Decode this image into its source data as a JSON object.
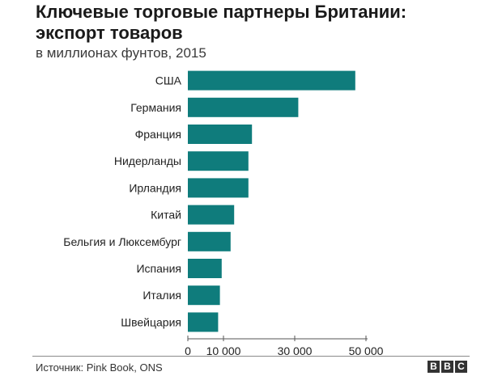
{
  "header": {
    "title_line1": "Ключевые торговые партнеры Британии:",
    "title_line2": "экспорт товаров",
    "subtitle": "в миллионах фунтов, 2015"
  },
  "footer": {
    "source": "Источник: Pink Book, ONS",
    "logo_letters": [
      "B",
      "B",
      "C"
    ]
  },
  "chart_data": {
    "type": "bar",
    "orientation": "horizontal",
    "title": "Ключевые торговые партнеры Британии: экспорт товаров",
    "subtitle": "в миллионах фунтов, 2015",
    "categories": [
      "США",
      "Германия",
      "Франция",
      "Нидерланды",
      "Ирландия",
      "Китай",
      "Бельгия и Люксембург",
      "Испания",
      "Италия",
      "Швейцария"
    ],
    "values": [
      47000,
      31000,
      18000,
      17000,
      17000,
      13000,
      12000,
      9500,
      9000,
      8500
    ],
    "xlim": [
      0,
      50000
    ],
    "xticks": [
      0,
      10000,
      30000,
      50000
    ],
    "xtick_labels": [
      "0",
      "10 000",
      "30 000",
      "50 000"
    ],
    "bar_color": "#0f7c7c",
    "grid": false
  }
}
